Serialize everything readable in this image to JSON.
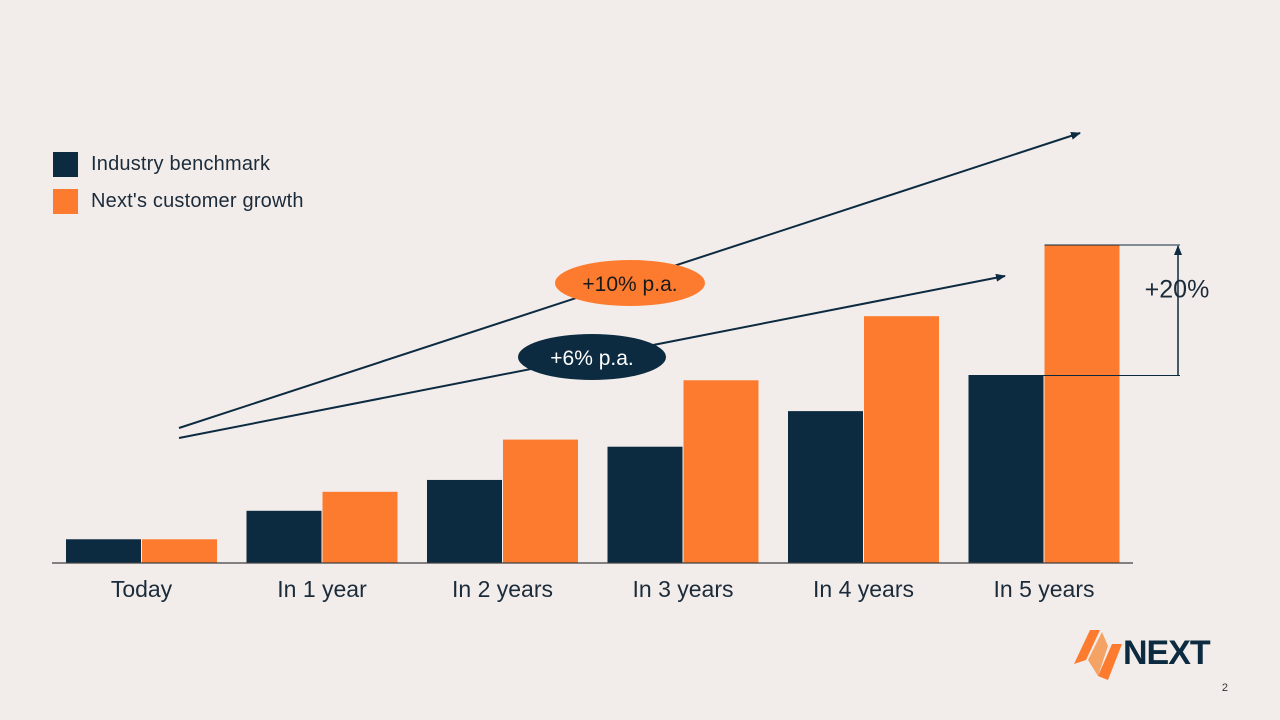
{
  "chart_data": {
    "type": "bar",
    "categories": [
      "Today",
      "In 1 year",
      "In 2 years",
      "In 3 years",
      "In 4 years",
      "In 5 years"
    ],
    "series": [
      {
        "name": "Industry benchmark",
        "color": "#0c2a40",
        "values": [
          1.0,
          2.2,
          3.5,
          4.9,
          6.4,
          7.9
        ]
      },
      {
        "name": "Next's customer growth",
        "color": "#fd7b2f",
        "values": [
          1.0,
          3.0,
          5.2,
          7.7,
          10.4,
          13.4
        ]
      }
    ],
    "ylim": [
      0,
      13.4
    ],
    "title": "",
    "xlabel": "",
    "ylabel": "",
    "grid": false,
    "legend_position": "top-left",
    "annotations": {
      "growth_next": {
        "text": "+10% p.a.",
        "color": "#fd7b2f"
      },
      "growth_benchmark": {
        "text": "+6% p.a.",
        "color": "#0c2a40"
      },
      "difference": {
        "text": "+20%"
      }
    }
  },
  "brand": {
    "name": "NEXT",
    "accent_color": "#fd7b2f",
    "dark_color": "#0c2a40"
  },
  "page_number": "2"
}
